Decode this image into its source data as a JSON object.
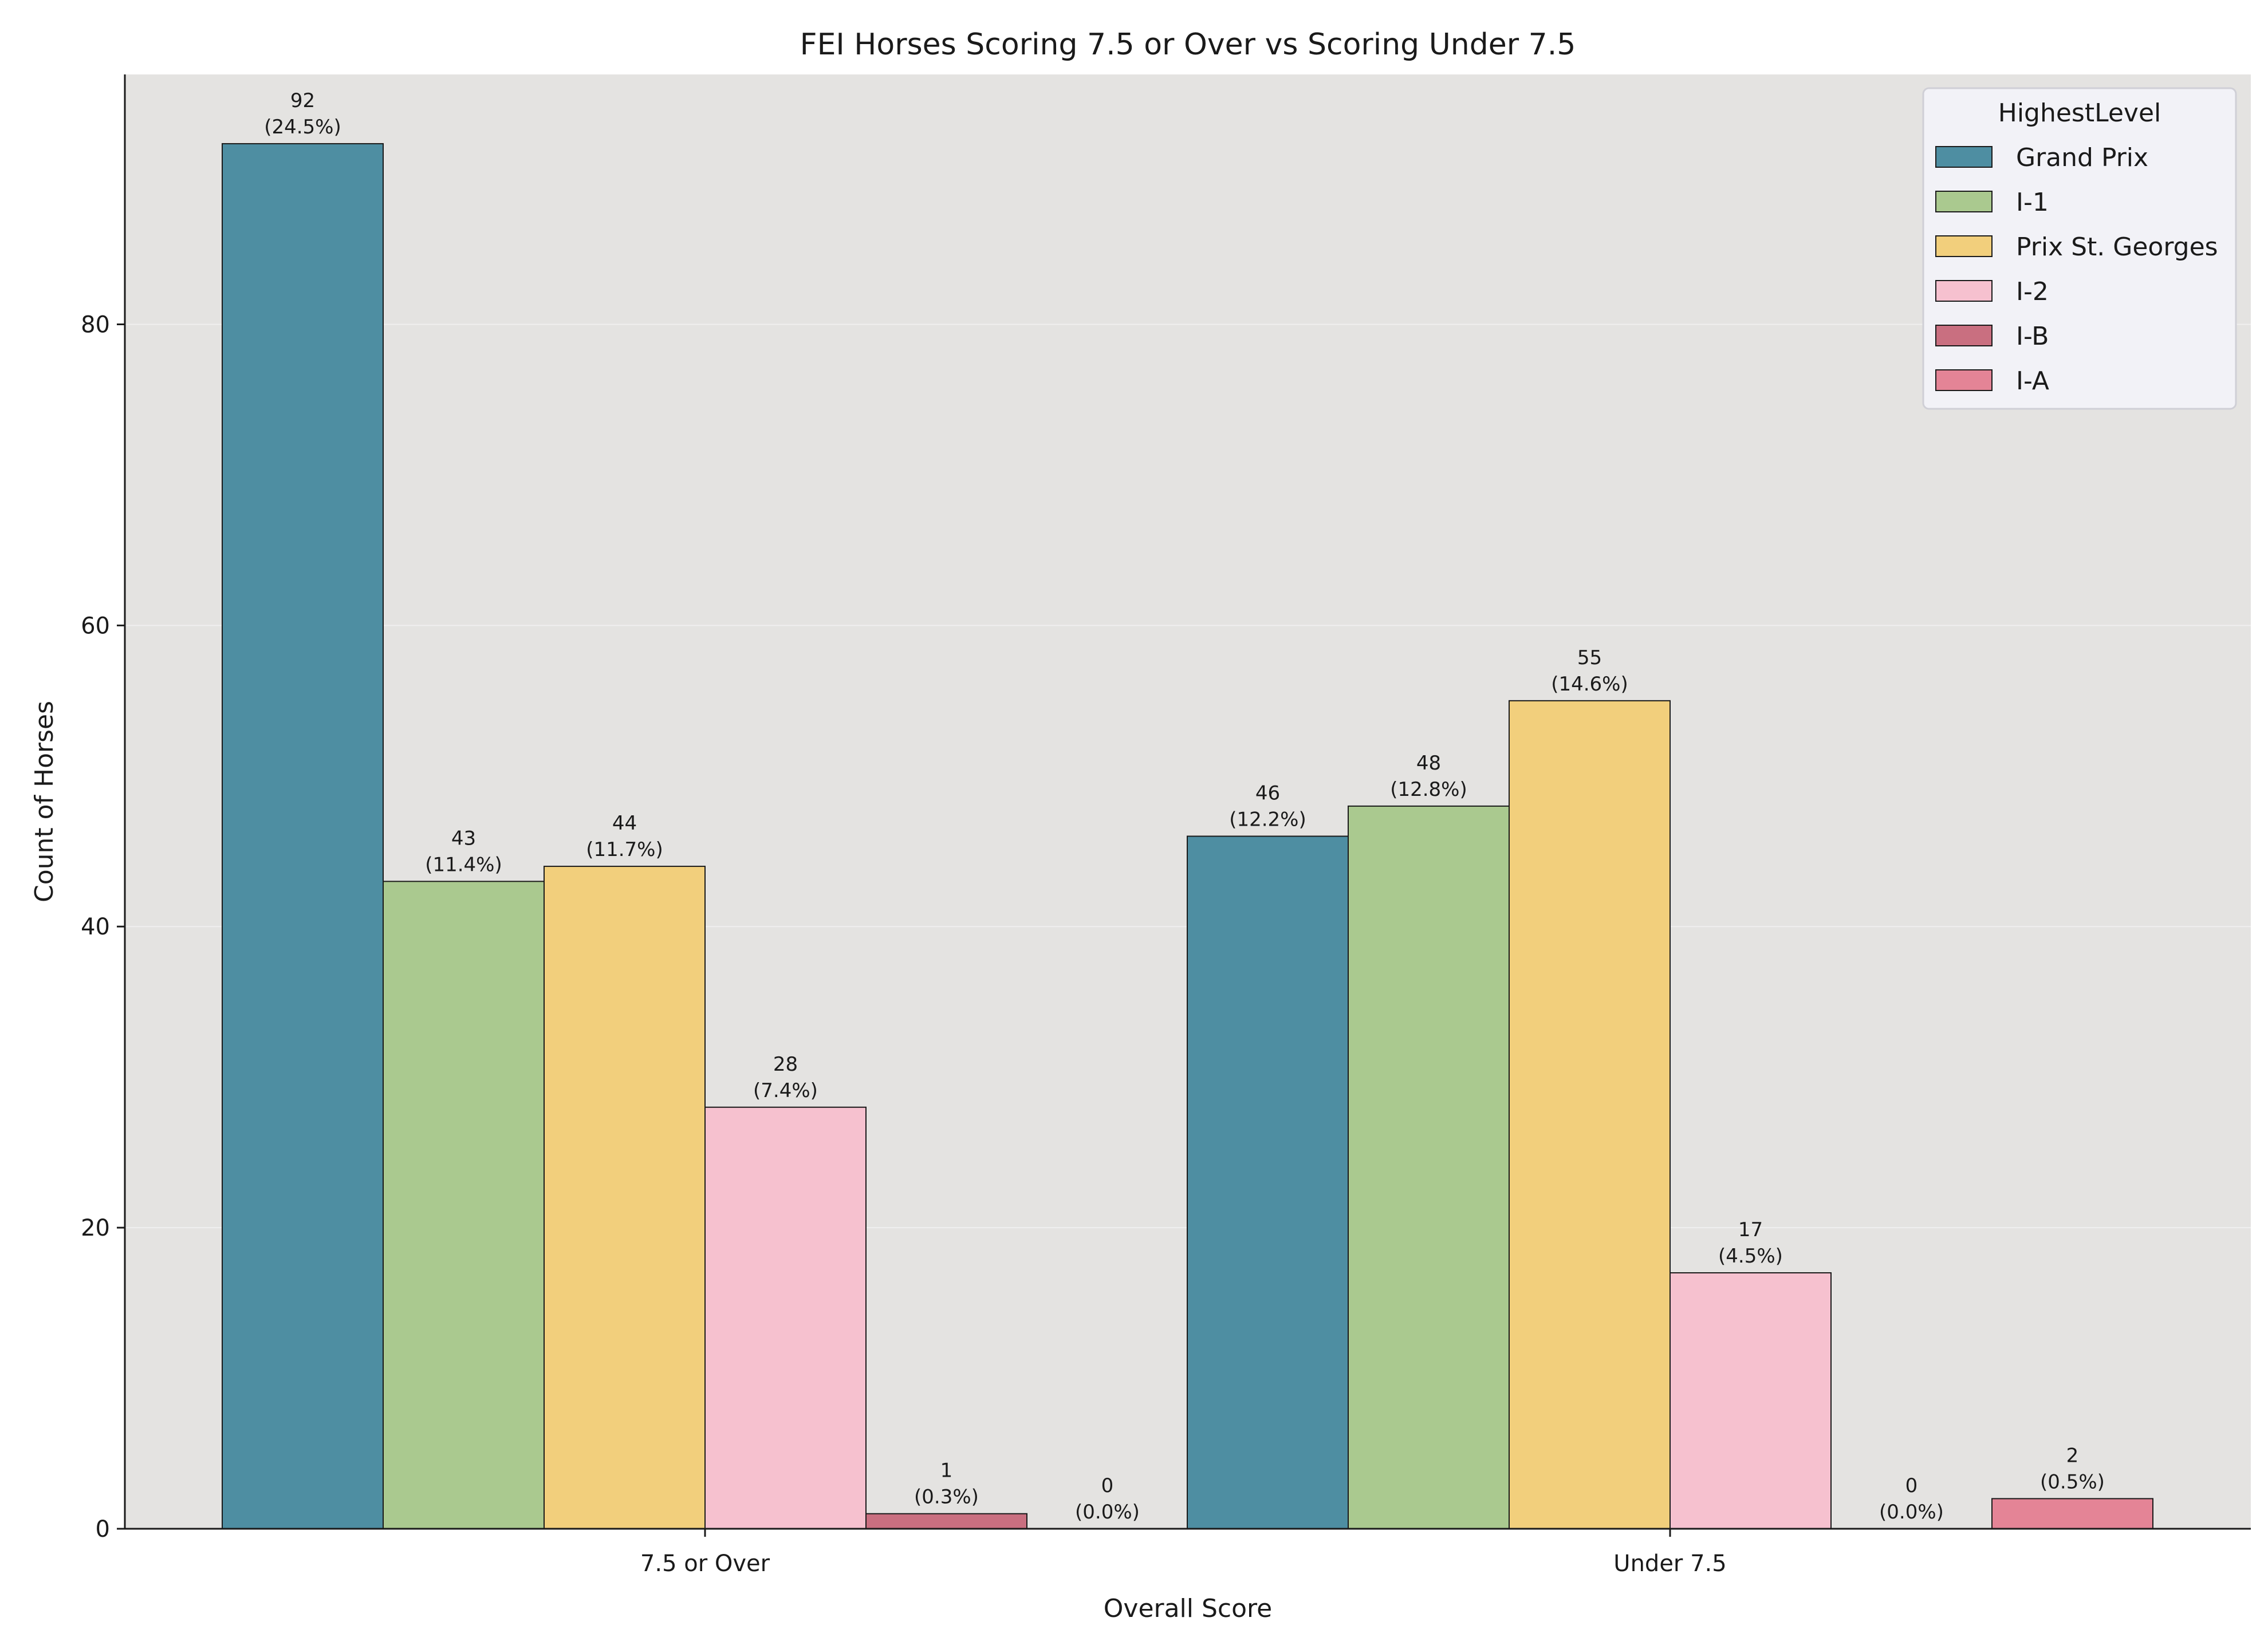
{
  "chart_data": {
    "type": "bar",
    "title": "FEI Horses Scoring 7.5 or Over vs Scoring Under 7.5",
    "xlabel": "Overall Score",
    "ylabel": "Count of Horses",
    "categories": [
      "7.5 or Over",
      "Under 7.5"
    ],
    "ylim": [
      0,
      96.6
    ],
    "yticks": [
      0,
      20,
      40,
      60,
      80
    ],
    "grid": true,
    "legend": {
      "title": "HighestLevel",
      "position": "top-right"
    },
    "series": [
      {
        "name": "Grand Prix",
        "color": "#4e8ea2",
        "values": [
          92,
          46
        ],
        "labels": [
          "92\n(24.5%)",
          "46\n(12.2%)"
        ]
      },
      {
        "name": "I-1",
        "color": "#aac98f",
        "values": [
          43,
          48
        ],
        "labels": [
          "43\n(11.4%)",
          "48\n(12.8%)"
        ]
      },
      {
        "name": "Prix St. Georges",
        "color": "#f2cf7c",
        "values": [
          44,
          55
        ],
        "labels": [
          "44\n(11.7%)",
          "55\n(14.6%)"
        ]
      },
      {
        "name": "I-2",
        "color": "#f6c1cf",
        "values": [
          28,
          17
        ],
        "labels": [
          "28\n(7.4%)",
          "17\n(4.5%)"
        ]
      },
      {
        "name": "I-B",
        "color": "#c96f80",
        "values": [
          1,
          0
        ],
        "labels": [
          "1\n(0.3%)",
          "0\n(0.0%)"
        ]
      },
      {
        "name": "I-A",
        "color": "#e48496",
        "values": [
          0,
          2
        ],
        "labels": [
          "0\n(0.0%)",
          "2\n(0.5%)"
        ]
      }
    ]
  },
  "colors": {
    "plot_background": "#e4e3e1",
    "legend_background": "#f2f2f7",
    "grid": "#f3f3f3",
    "edge": "#1a1a1a"
  }
}
